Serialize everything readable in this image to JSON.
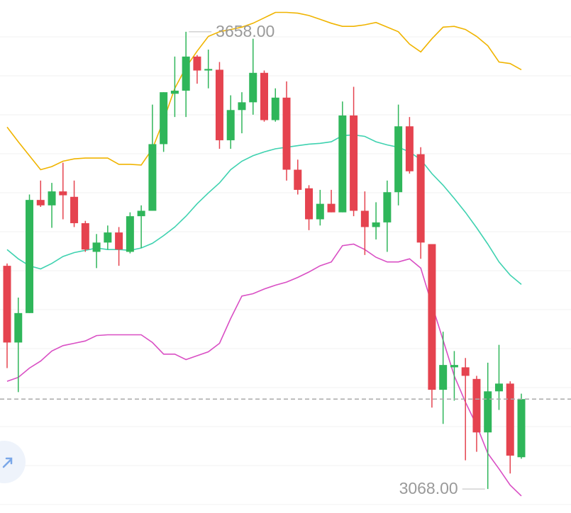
{
  "chart_data": {
    "type": "candlestick",
    "up_color": "#2fb65a",
    "down_color": "#e5434f",
    "ylim": [
      3037,
      3699
    ],
    "open": [
      3356,
      3257,
      3295,
      3441,
      3434,
      3452,
      3445,
      3411,
      3374,
      3386,
      3399,
      3374,
      3420,
      3427,
      3513,
      3578,
      3582,
      3626,
      3608,
      3609,
      3518,
      3557,
      3567,
      3605,
      3544,
      3573,
      3480,
      3456,
      3416,
      3436,
      3425,
      3550,
      3427,
      3406,
      3412,
      3451,
      3536,
      3500,
      3384,
      3196,
      3225,
      3225,
      3210,
      3141,
      3194,
      3204,
      3109
    ],
    "high": [
      3359,
      3315,
      3448,
      3466,
      3463,
      3489,
      3466,
      3414,
      3397,
      3408,
      3406,
      3425,
      3434,
      3564,
      3580,
      3626,
      3658,
      3628,
      3635,
      3619,
      3576,
      3580,
      3649,
      3608,
      3585,
      3594,
      3493,
      3460,
      3454,
      3454,
      3568,
      3587,
      3452,
      3438,
      3466,
      3564,
      3548,
      3509,
      3384,
      3271,
      3246,
      3237,
      3214,
      3231,
      3254,
      3207,
      3191
    ],
    "low": [
      3224,
      3193,
      3295,
      3432,
      3405,
      3416,
      3406,
      3374,
      3353,
      3377,
      3356,
      3372,
      3379,
      3427,
      3503,
      3548,
      3548,
      3591,
      3585,
      3507,
      3507,
      3527,
      3551,
      3542,
      3542,
      3466,
      3448,
      3402,
      3408,
      3425,
      3425,
      3420,
      3370,
      3390,
      3374,
      3434,
      3475,
      3365,
      3173,
      3152,
      3182,
      3105,
      3116,
      3068,
      3170,
      3088,
      3107
    ],
    "close": [
      3257,
      3295,
      3441,
      3434,
      3452,
      3447,
      3411,
      3377,
      3386,
      3399,
      3377,
      3420,
      3427,
      3513,
      3580,
      3582,
      3626,
      3608,
      3610,
      3518,
      3557,
      3567,
      3605,
      3544,
      3573,
      3480,
      3454,
      3416,
      3436,
      3425,
      3550,
      3427,
      3406,
      3412,
      3451,
      3536,
      3478,
      3386,
      3196,
      3228,
      3228,
      3214,
      3141,
      3194,
      3204,
      3111,
      3184
    ],
    "bands": [
      {
        "color": "#f0b400",
        "values": [
          3535,
          3516,
          3498,
          3480,
          3484,
          3491,
          3494,
          3495,
          3495,
          3495,
          3487,
          3487,
          3486,
          3507,
          3544,
          3585,
          3612,
          3633,
          3652,
          3658,
          3661,
          3664,
          3669,
          3676,
          3683,
          3683,
          3682,
          3679,
          3674,
          3669,
          3665,
          3665,
          3667,
          3670,
          3664,
          3658,
          3642,
          3632,
          3649,
          3664,
          3665,
          3661,
          3652,
          3640,
          3619,
          3617,
          3609
        ]
      },
      {
        "color": "#3fd2b0",
        "values": [
          3377,
          3365,
          3356,
          3352,
          3359,
          3368,
          3373,
          3376,
          3379,
          3377,
          3377,
          3376,
          3379,
          3385,
          3395,
          3406,
          3420,
          3436,
          3450,
          3463,
          3480,
          3491,
          3498,
          3503,
          3507,
          3509,
          3511,
          3513,
          3514,
          3516,
          3524,
          3525,
          3523,
          3516,
          3512,
          3509,
          3503,
          3493,
          3475,
          3460,
          3443,
          3425,
          3405,
          3384,
          3361,
          3344,
          3332
        ]
      },
      {
        "color": "#d94fc4",
        "values": [
          3207,
          3212,
          3224,
          3233,
          3246,
          3253,
          3256,
          3259,
          3266,
          3267,
          3267,
          3267,
          3267,
          3257,
          3242,
          3242,
          3235,
          3240,
          3245,
          3256,
          3288,
          3317,
          3320,
          3326,
          3331,
          3335,
          3341,
          3348,
          3356,
          3361,
          3382,
          3384,
          3377,
          3367,
          3361,
          3361,
          3365,
          3353,
          3306,
          3260,
          3214,
          3180,
          3150,
          3114,
          3094,
          3073,
          3059
        ]
      }
    ],
    "annotations": {
      "max": "3658.00",
      "min": "3068.00"
    }
  }
}
